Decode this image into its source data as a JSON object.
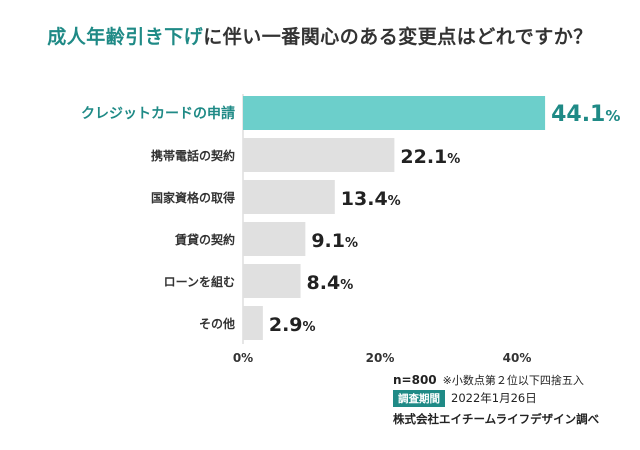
{
  "title": {
    "highlight": "成人年齢引き下げ",
    "rest": "に伴い一番関心のある変更点はどれですか？"
  },
  "chart_data": {
    "type": "bar",
    "orientation": "horizontal",
    "title": "成人年齢引き下げに伴い一番関心のある変更点はどれですか？",
    "categories": [
      "クレジットカードの申請",
      "携帯電話の契約",
      "国家資格の取得",
      "賃貸の契約",
      "ローンを組む",
      "その他"
    ],
    "values": [
      44.1,
      22.1,
      13.4,
      9.1,
      8.4,
      2.9
    ],
    "value_suffix": "%",
    "xlim": [
      0,
      50
    ],
    "xticks": [
      0,
      20,
      40
    ],
    "xtick_labels": [
      "0%",
      "20%",
      "40%"
    ],
    "highlight_index": 0,
    "colors": {
      "highlight": "#6ccfcb",
      "default": "#e0e0e0",
      "highlight_text": "#1f8a86",
      "text": "#222222"
    }
  },
  "footer": {
    "sample": "n=800",
    "note": "※小数点第２位以下四捨五入",
    "period_label": "調査期間",
    "period_value": "2022年1月26日",
    "company": "株式会社エイチームライフデザイン調べ"
  }
}
